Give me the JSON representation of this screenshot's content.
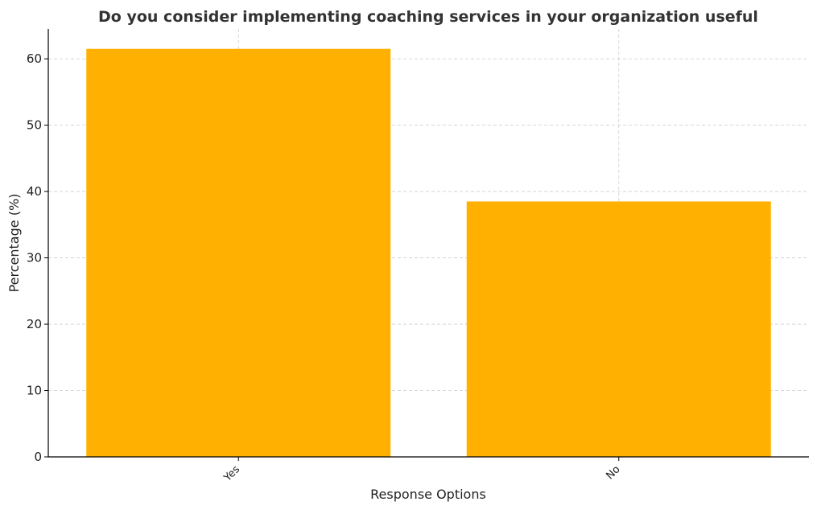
{
  "chart_data": {
    "type": "bar",
    "title": "Do you consider implementing coaching services in your organization useful",
    "xlabel": "Response Options",
    "ylabel": "Percentage (%)",
    "categories": [
      "Yes",
      "No"
    ],
    "values": [
      61.5,
      38.5
    ],
    "ylim": [
      0,
      64.5
    ],
    "yticks": [
      0,
      10,
      20,
      30,
      40,
      50,
      60
    ],
    "grid": true,
    "bar_color": "#FFB000"
  }
}
